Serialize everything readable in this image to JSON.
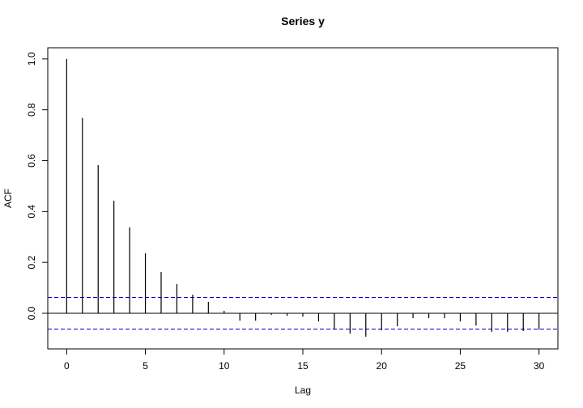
{
  "chart_data": {
    "type": "acf",
    "title": "Series  y",
    "x_label": "Lag",
    "y_label": "ACF",
    "x": [
      0,
      1,
      2,
      3,
      4,
      5,
      6,
      7,
      8,
      9,
      10,
      11,
      12,
      13,
      14,
      15,
      16,
      17,
      18,
      19,
      20,
      21,
      22,
      23,
      24,
      25,
      26,
      27,
      28,
      29,
      30
    ],
    "values": [
      1.0,
      0.768,
      0.583,
      0.443,
      0.338,
      0.236,
      0.162,
      0.115,
      0.073,
      0.045,
      0.01,
      -0.029,
      -0.029,
      -0.006,
      -0.01,
      -0.013,
      -0.032,
      -0.064,
      -0.08,
      -0.092,
      -0.067,
      -0.051,
      -0.019,
      -0.019,
      -0.019,
      -0.032,
      -0.048,
      -0.073,
      -0.073,
      -0.07,
      -0.064
    ],
    "color": "#000000",
    "ci_lines": [
      0.062,
      -0.062
    ],
    "ci_color": "#0000cc",
    "xlim": [
      -1.2,
      31.2
    ],
    "xticks": [
      0,
      5,
      10,
      15,
      20,
      25,
      30
    ],
    "ylim": [
      -0.14,
      1.044
    ],
    "yticks": [
      {
        "value": 0,
        "label": "0.0"
      },
      0.2,
      0.4,
      0.6,
      0.8,
      {
        "value": 1,
        "label": "1.0"
      }
    ]
  }
}
